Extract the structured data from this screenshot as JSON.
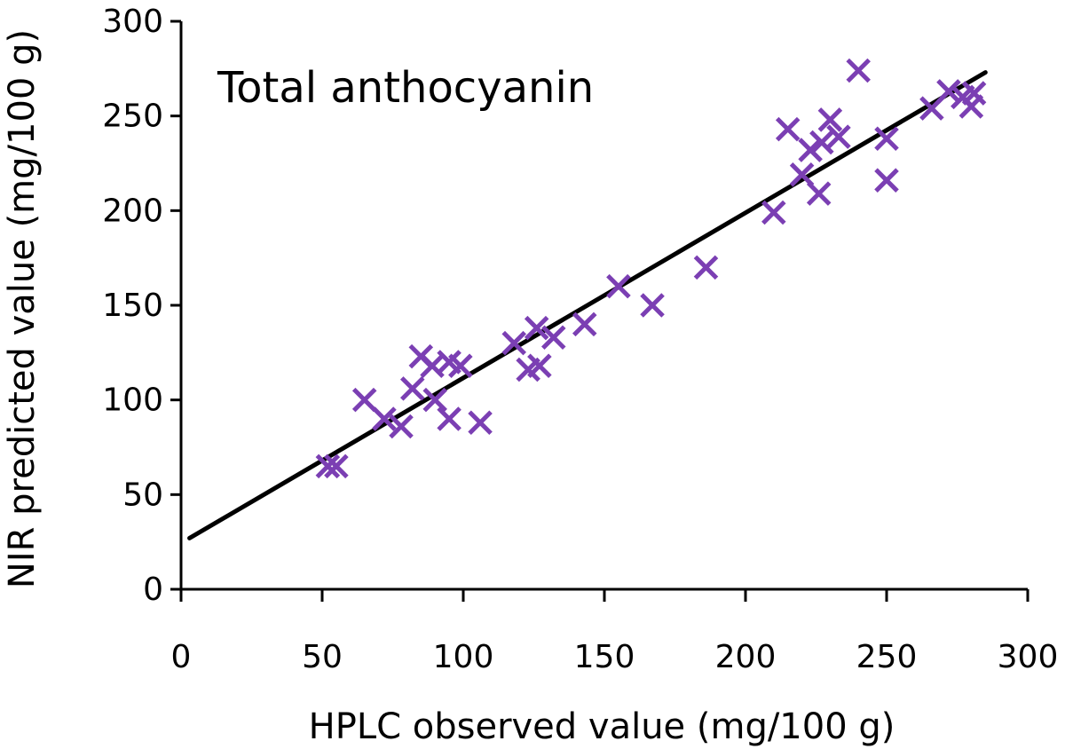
{
  "chart_data": {
    "type": "scatter",
    "title": "Total anthocyanin",
    "xlabel": "HPLC observed value (mg/100 g)",
    "ylabel": "NIR predicted value (mg/100 g)",
    "xlim": [
      0,
      300
    ],
    "ylim": [
      0,
      300
    ],
    "xticks": [
      "0",
      "50",
      "100",
      "150",
      "200",
      "250",
      "300"
    ],
    "yticks": [
      "0",
      "50",
      "100",
      "150",
      "200",
      "250",
      "300"
    ],
    "grid": false,
    "legend": "none",
    "marker": "x",
    "colors": {
      "points": "#7b3fb3",
      "line": "#000000",
      "axis": "#000000"
    },
    "trendline": {
      "x": [
        3,
        285
      ],
      "y": [
        27,
        273
      ]
    },
    "points": [
      {
        "x": 52,
        "y": 65
      },
      {
        "x": 55,
        "y": 65
      },
      {
        "x": 65,
        "y": 100
      },
      {
        "x": 72,
        "y": 90
      },
      {
        "x": 78,
        "y": 86
      },
      {
        "x": 82,
        "y": 106
      },
      {
        "x": 85,
        "y": 123
      },
      {
        "x": 89,
        "y": 118
      },
      {
        "x": 90,
        "y": 100
      },
      {
        "x": 95,
        "y": 90
      },
      {
        "x": 95,
        "y": 120
      },
      {
        "x": 99,
        "y": 118
      },
      {
        "x": 106,
        "y": 88
      },
      {
        "x": 118,
        "y": 130
      },
      {
        "x": 123,
        "y": 116
      },
      {
        "x": 126,
        "y": 138
      },
      {
        "x": 127,
        "y": 118
      },
      {
        "x": 132,
        "y": 133
      },
      {
        "x": 143,
        "y": 140
      },
      {
        "x": 155,
        "y": 160
      },
      {
        "x": 167,
        "y": 150
      },
      {
        "x": 186,
        "y": 170
      },
      {
        "x": 210,
        "y": 199
      },
      {
        "x": 215,
        "y": 243
      },
      {
        "x": 220,
        "y": 219
      },
      {
        "x": 223,
        "y": 232
      },
      {
        "x": 226,
        "y": 209
      },
      {
        "x": 227,
        "y": 236
      },
      {
        "x": 230,
        "y": 248
      },
      {
        "x": 233,
        "y": 239
      },
      {
        "x": 240,
        "y": 274
      },
      {
        "x": 250,
        "y": 216
      },
      {
        "x": 250,
        "y": 238
      },
      {
        "x": 266,
        "y": 254
      },
      {
        "x": 272,
        "y": 263
      },
      {
        "x": 277,
        "y": 260
      },
      {
        "x": 280,
        "y": 255
      },
      {
        "x": 281,
        "y": 262
      }
    ]
  }
}
